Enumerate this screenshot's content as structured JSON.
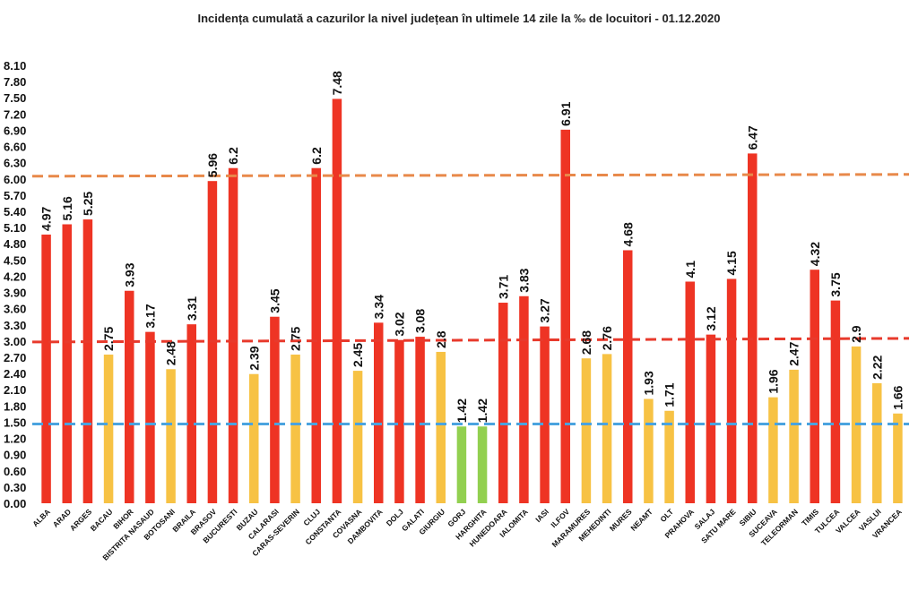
{
  "chart_data": {
    "type": "bar",
    "title": "Incidența cumulată a cazurilor la nivel județean în ultimele 14 zile la ‰ de locuitori - 01.12.2020",
    "xlabel": "",
    "ylabel": "",
    "ylim": [
      0,
      8.1
    ],
    "yticks": [
      "0.00",
      "0.30",
      "0.60",
      "0.90",
      "1.20",
      "1.50",
      "1.80",
      "2.10",
      "2.40",
      "2.70",
      "3.00",
      "3.30",
      "3.60",
      "3.90",
      "4.20",
      "4.50",
      "4.80",
      "5.10",
      "5.40",
      "5.70",
      "6.00",
      "6.30",
      "6.60",
      "6.90",
      "7.20",
      "7.50",
      "7.80",
      "8.10"
    ],
    "grid": false,
    "legend": "none",
    "categories": [
      "ALBA",
      "ARAD",
      "ARGES",
      "BACAU",
      "BIHOR",
      "BISTRITA NASAUD",
      "BOTOSANI",
      "BRAILA",
      "BRASOV",
      "BUCURESTI",
      "BUZAU",
      "CALARASI",
      "CARAS-SEVERIN",
      "CLUJ",
      "CONSTANTA",
      "COVASNA",
      "DAMBOVITA",
      "DOLJ",
      "GALATI",
      "GIURGIU",
      "GORJ",
      "HARGHITA",
      "HUNEDOARA",
      "IALOMITA",
      "IASI",
      "ILFOV",
      "MARAMURES",
      "MEHEDINTI",
      "MURES",
      "NEAMT",
      "OLT",
      "PRAHOVA",
      "SALAJ",
      "SATU MARE",
      "SIBIU",
      "SUCEAVA",
      "TELEORMAN",
      "TIMIS",
      "TULCEA",
      "VALCEA",
      "VASLUI",
      "VRANCEA"
    ],
    "values": [
      4.97,
      5.16,
      5.25,
      2.75,
      3.93,
      3.17,
      2.48,
      3.31,
      5.96,
      6.2,
      2.39,
      3.45,
      2.75,
      6.2,
      7.48,
      2.45,
      3.34,
      3.02,
      3.08,
      2.8,
      1.42,
      1.42,
      3.71,
      3.83,
      3.27,
      6.91,
      2.68,
      2.76,
      4.68,
      1.93,
      1.71,
      4.1,
      3.12,
      4.15,
      6.47,
      1.96,
      2.47,
      4.32,
      3.75,
      2.9,
      2.22,
      1.66
    ],
    "value_labels": [
      "4.97",
      "5.16",
      "5.25",
      "2.75",
      "3.93",
      "3.17",
      "2.48",
      "3.31",
      "5.96",
      "6.2",
      "2.39",
      "3.45",
      "2.75",
      "6.2",
      "7.48",
      "2.45",
      "3.34",
      "3.02",
      "3.08",
      "2.8",
      "1.42",
      "1.42",
      "3.71",
      "3.83",
      "3.27",
      "6.91",
      "2.68",
      "2.76",
      "4.68",
      "1.93",
      "1.71",
      "4.1",
      "3.12",
      "4.15",
      "6.47",
      "1.96",
      "2.47",
      "4.32",
      "3.75",
      "2.9",
      "2.22",
      "1.66"
    ],
    "colors": {
      "high": "#ee3424",
      "medium": "#f7c244",
      "low": "#92d050",
      "threshold_6": "#e8894a",
      "threshold_3": "#e83a2c",
      "threshold_1_5": "#4aa3df"
    },
    "thresholds": [
      {
        "value": 6.0,
        "color_key": "threshold_6"
      },
      {
        "value": 3.0,
        "color_key": "threshold_3"
      },
      {
        "value": 1.5,
        "color_key": "threshold_1_5"
      }
    ]
  }
}
